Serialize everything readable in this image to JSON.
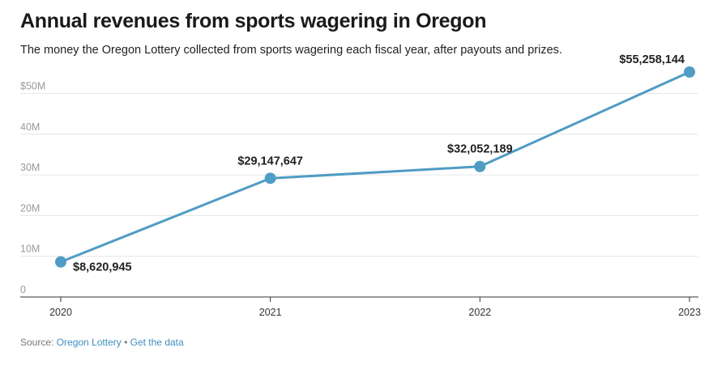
{
  "header": {
    "title": "Annual revenues from sports wagering in Oregon",
    "subtitle": "The money the Oregon Lottery collected from sports wagering each fiscal year, after payouts and prizes."
  },
  "footer": {
    "source_prefix": "Source: ",
    "source_link": "Oregon Lottery",
    "separator": " • ",
    "data_link": "Get the data"
  },
  "colors": {
    "line": "#4f9cc4",
    "grid": "#e6e6e6",
    "axis": "#333333"
  },
  "chart_data": {
    "type": "line",
    "title": "Annual revenues from sports wagering in Oregon",
    "xlabel": "",
    "ylabel": "",
    "x": [
      "2020",
      "2021",
      "2022",
      "2023"
    ],
    "series": [
      {
        "values": [
          8620945,
          29147647,
          32052189,
          55258144
        ]
      }
    ],
    "data_labels": [
      "$8,620,945",
      "$29,147,647",
      "$32,052,189",
      "$55,258,144"
    ],
    "ylim": [
      0,
      55258144
    ],
    "y_ticks": [
      0,
      10000000,
      20000000,
      30000000,
      40000000,
      50000000
    ],
    "y_tick_labels": [
      "0",
      "10M",
      "20M",
      "30M",
      "40M",
      "$50M"
    ],
    "grid": true,
    "legend": "none"
  }
}
